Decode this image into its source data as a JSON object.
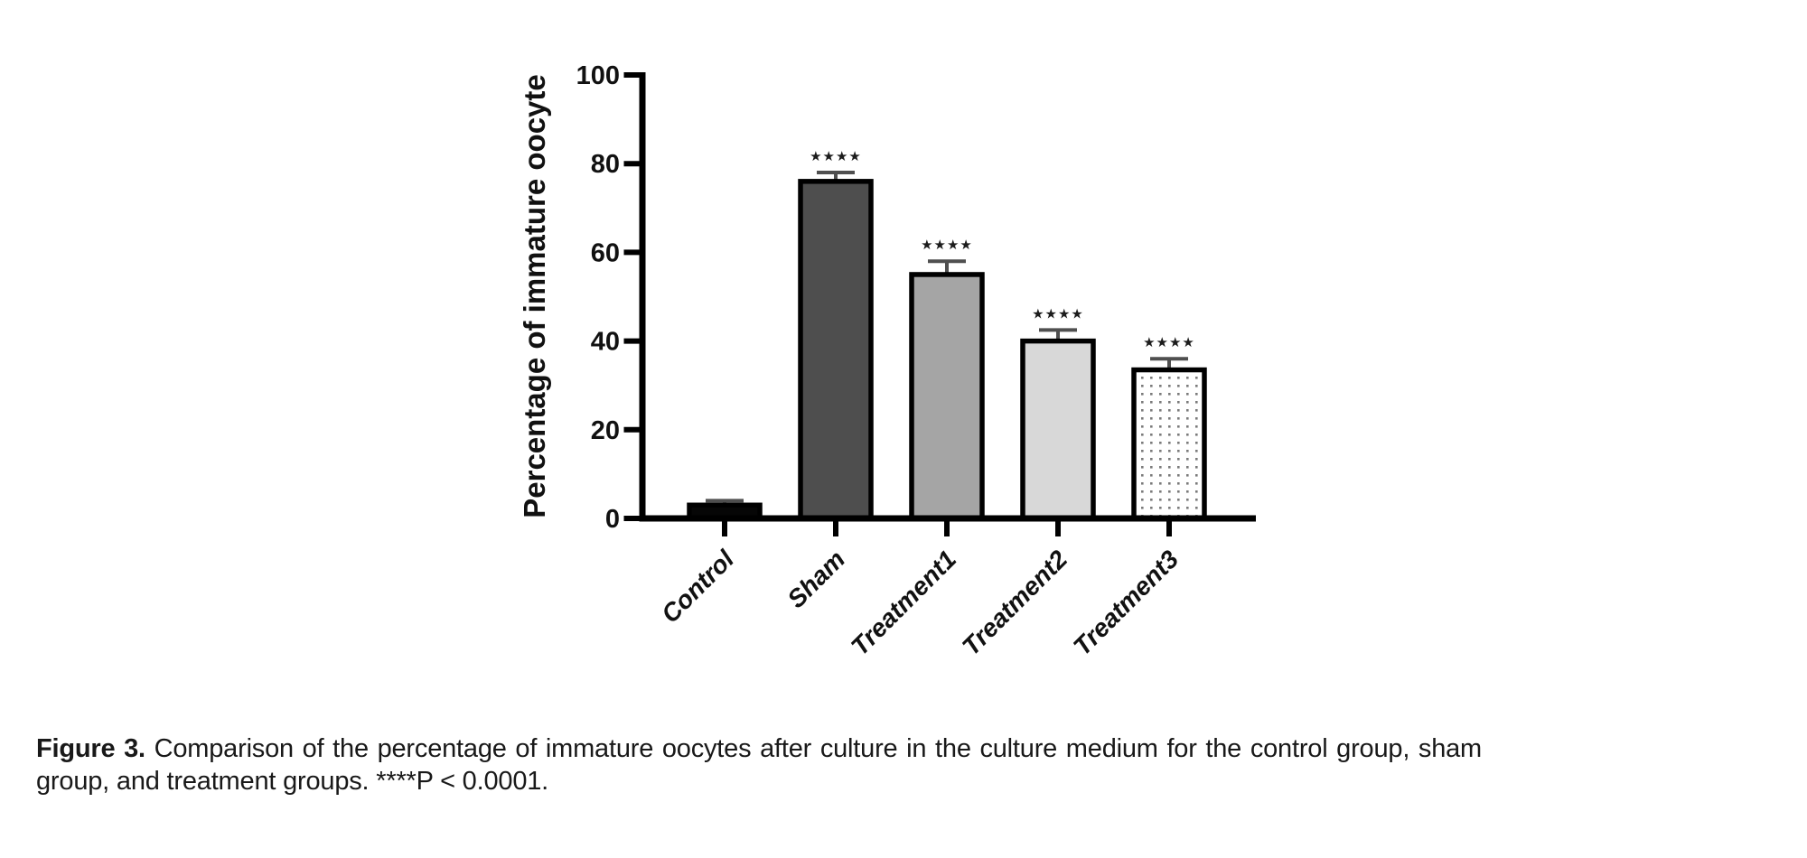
{
  "figure": {
    "caption_label": "Figure 3.",
    "caption_text": "Comparison of the percentage of immature oocytes after culture in the culture medium for the control group, sham group, and treatment groups. ****P < 0.0001."
  },
  "chart_data": {
    "type": "bar",
    "title": "",
    "xlabel": "",
    "ylabel": "Percentage of immature oocyte",
    "ylim": [
      0,
      100
    ],
    "yticks": [
      0,
      20,
      40,
      60,
      80,
      100
    ],
    "categories": [
      "Control",
      "Sham",
      "Treatment1",
      "Treatment2",
      "Treatment3"
    ],
    "values": [
      3,
      76,
      55,
      40,
      33.5
    ],
    "errors_up": [
      1,
      2,
      3,
      2.5,
      2.5
    ],
    "significance": [
      "",
      "****",
      "****",
      "****",
      "****"
    ],
    "bar_fills": [
      "#060606",
      "#4e4e4e",
      "#a5a5a5",
      "#d8d8d8",
      "dots-pattern"
    ],
    "dot_pattern_color": "#7b7b7b",
    "bar_border_color": "#000000",
    "error_bar_color": "#4f4f4f",
    "significance_color": "#1c1c1c",
    "axis_color": "#000000",
    "grid": false,
    "legend": null
  }
}
